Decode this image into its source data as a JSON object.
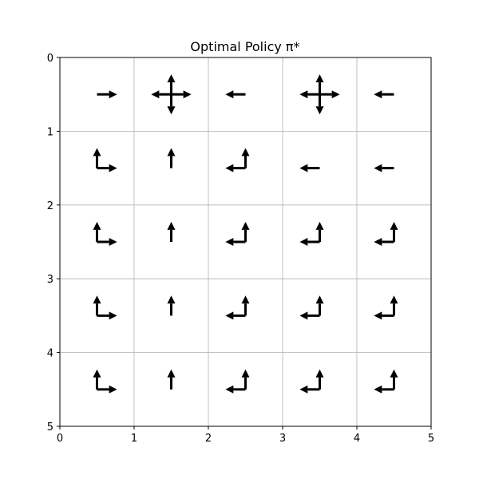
{
  "chart_data": {
    "type": "quiver-grid",
    "title": "Optimal Policy π*",
    "xlabel": "",
    "ylabel": "",
    "xlim": [
      0,
      5
    ],
    "ylim": [
      5,
      0
    ],
    "xticks": [
      "0",
      "1",
      "2",
      "3",
      "4",
      "5"
    ],
    "yticks": [
      "0",
      "1",
      "2",
      "3",
      "4",
      "5"
    ],
    "grid": true,
    "arrow_color": "#000000",
    "grid_color": "#b0b0b0",
    "cells": [
      {
        "row": 0,
        "col": 0,
        "actions": [
          "right"
        ]
      },
      {
        "row": 0,
        "col": 1,
        "actions": [
          "up",
          "down",
          "left",
          "right"
        ]
      },
      {
        "row": 0,
        "col": 2,
        "actions": [
          "left"
        ]
      },
      {
        "row": 0,
        "col": 3,
        "actions": [
          "up",
          "down",
          "left",
          "right"
        ]
      },
      {
        "row": 0,
        "col": 4,
        "actions": [
          "left"
        ]
      },
      {
        "row": 1,
        "col": 0,
        "actions": [
          "up",
          "right"
        ]
      },
      {
        "row": 1,
        "col": 1,
        "actions": [
          "up"
        ]
      },
      {
        "row": 1,
        "col": 2,
        "actions": [
          "up",
          "left"
        ]
      },
      {
        "row": 1,
        "col": 3,
        "actions": [
          "left"
        ]
      },
      {
        "row": 1,
        "col": 4,
        "actions": [
          "left"
        ]
      },
      {
        "row": 2,
        "col": 0,
        "actions": [
          "up",
          "right"
        ]
      },
      {
        "row": 2,
        "col": 1,
        "actions": [
          "up"
        ]
      },
      {
        "row": 2,
        "col": 2,
        "actions": [
          "up",
          "left"
        ]
      },
      {
        "row": 2,
        "col": 3,
        "actions": [
          "up",
          "left"
        ]
      },
      {
        "row": 2,
        "col": 4,
        "actions": [
          "up",
          "left"
        ]
      },
      {
        "row": 3,
        "col": 0,
        "actions": [
          "up",
          "right"
        ]
      },
      {
        "row": 3,
        "col": 1,
        "actions": [
          "up"
        ]
      },
      {
        "row": 3,
        "col": 2,
        "actions": [
          "up",
          "left"
        ]
      },
      {
        "row": 3,
        "col": 3,
        "actions": [
          "up",
          "left"
        ]
      },
      {
        "row": 3,
        "col": 4,
        "actions": [
          "up",
          "left"
        ]
      },
      {
        "row": 4,
        "col": 0,
        "actions": [
          "up",
          "right"
        ]
      },
      {
        "row": 4,
        "col": 1,
        "actions": [
          "up"
        ]
      },
      {
        "row": 4,
        "col": 2,
        "actions": [
          "up",
          "left"
        ]
      },
      {
        "row": 4,
        "col": 3,
        "actions": [
          "up",
          "left"
        ]
      },
      {
        "row": 4,
        "col": 4,
        "actions": [
          "up",
          "left"
        ]
      }
    ]
  }
}
